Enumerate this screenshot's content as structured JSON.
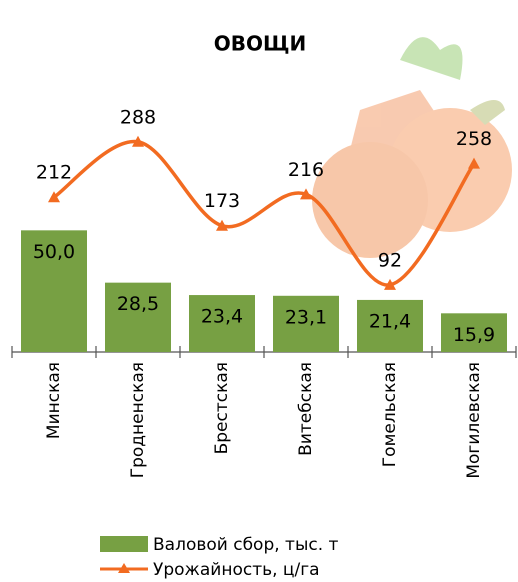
{
  "chart_data": {
    "type": "bar",
    "title": "ОВОЩИ",
    "categories": [
      "Минская",
      "Гродненская",
      "Брестская",
      "Витебская",
      "Гомельская",
      "Могилевская"
    ],
    "series": [
      {
        "name": "Валовой сбор, тыс. т",
        "color": "#77a043",
        "values": [
          50.0,
          28.5,
          23.4,
          23.1,
          21.4,
          15.9
        ],
        "value_labels": [
          "50,0",
          "28,5",
          "23,4",
          "23,1",
          "21,4",
          "15,9"
        ]
      },
      {
        "name": "Урожайность, ц/га",
        "type": "line",
        "axis": "y2",
        "color": "#f26b21",
        "values": [
          212,
          288,
          173,
          216,
          92,
          258
        ]
      }
    ],
    "ylim": [
      0,
      120
    ],
    "y2lim": [
      0,
      400
    ],
    "legend": "bottom"
  }
}
